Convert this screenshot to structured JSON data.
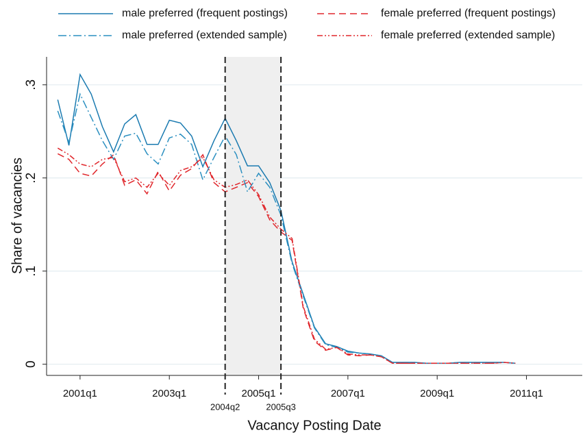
{
  "chart_data": {
    "type": "line",
    "xlabel": "Vacancy Posting Date",
    "ylabel": "Share of vacancies",
    "x": [
      "2000q3",
      "2000q4",
      "2001q1",
      "2001q2",
      "2001q3",
      "2001q4",
      "2002q1",
      "2002q2",
      "2002q3",
      "2002q4",
      "2003q1",
      "2003q2",
      "2003q3",
      "2003q4",
      "2004q1",
      "2004q2",
      "2004q3",
      "2004q4",
      "2005q1",
      "2005q2",
      "2005q3",
      "2005q4",
      "2006q1",
      "2006q2",
      "2006q3",
      "2006q4",
      "2007q1",
      "2007q2",
      "2007q3",
      "2007q4",
      "2008q1",
      "2008q2",
      "2008q3",
      "2008q4",
      "2009q1",
      "2009q2",
      "2009q3",
      "2009q4",
      "2010q1",
      "2010q2",
      "2010q3",
      "2010q4"
    ],
    "series": [
      {
        "name": "male preferred (frequent postings)",
        "color": "#1a7ab0",
        "line_style": "solid",
        "values": [
          0.284,
          0.235,
          0.311,
          0.29,
          0.255,
          0.228,
          0.258,
          0.268,
          0.236,
          0.236,
          0.262,
          0.259,
          0.245,
          0.212,
          0.24,
          0.264,
          0.24,
          0.213,
          0.213,
          0.195,
          0.165,
          0.11,
          0.075,
          0.04,
          0.022,
          0.019,
          0.014,
          0.012,
          0.011,
          0.009,
          0.002,
          0.002,
          0.002,
          0.001,
          0.001,
          0.001,
          0.002,
          0.002,
          0.002,
          0.002,
          0.002,
          0.001
        ]
      },
      {
        "name": "female preferred (frequent postings)",
        "color": "#e0262b",
        "line_style": "dashed",
        "values": [
          0.226,
          0.22,
          0.205,
          0.202,
          0.215,
          0.225,
          0.192,
          0.198,
          0.183,
          0.207,
          0.186,
          0.203,
          0.21,
          0.225,
          0.195,
          0.185,
          0.19,
          0.195,
          0.18,
          0.155,
          0.142,
          0.133,
          0.06,
          0.025,
          0.015,
          0.018,
          0.01,
          0.009,
          0.01,
          0.008,
          0.001,
          0.001,
          0.001,
          0.001,
          0.001,
          0.001,
          0.001,
          0.001,
          0.001,
          0.001,
          0.002,
          0.001
        ]
      },
      {
        "name": "male preferred (extended sample)",
        "color": "#2a8fc0",
        "line_style": "dashdot",
        "values": [
          0.272,
          0.238,
          0.29,
          0.265,
          0.24,
          0.22,
          0.245,
          0.248,
          0.226,
          0.215,
          0.243,
          0.247,
          0.236,
          0.198,
          0.222,
          0.245,
          0.225,
          0.185,
          0.205,
          0.19,
          0.16,
          0.108,
          0.073,
          0.039,
          0.021,
          0.018,
          0.013,
          0.012,
          0.011,
          0.009,
          0.002,
          0.002,
          0.002,
          0.001,
          0.001,
          0.001,
          0.002,
          0.002,
          0.002,
          0.002,
          0.002,
          0.001
        ]
      },
      {
        "name": "female preferred (extended sample)",
        "color": "#e0262b",
        "line_style": "dashdotdot",
        "values": [
          0.232,
          0.225,
          0.215,
          0.212,
          0.22,
          0.222,
          0.196,
          0.2,
          0.19,
          0.205,
          0.192,
          0.208,
          0.212,
          0.222,
          0.198,
          0.19,
          0.193,
          0.198,
          0.182,
          0.158,
          0.145,
          0.135,
          0.062,
          0.027,
          0.016,
          0.018,
          0.011,
          0.01,
          0.01,
          0.008,
          0.001,
          0.001,
          0.001,
          0.001,
          0.001,
          0.001,
          0.001,
          0.001,
          0.001,
          0.001,
          0.002,
          0.001
        ]
      }
    ],
    "xlim": [
      "2000q2",
      "2012q2"
    ],
    "xticks": [
      "2001q1",
      "2003q1",
      "2005q1",
      "2007q1",
      "2009q1",
      "2011q1"
    ],
    "ylim": [
      -0.012,
      0.33
    ],
    "yticks": [
      0,
      {
        "value": 0.1,
        "label": ".1"
      },
      {
        "value": 0.2,
        "label": ".2"
      },
      {
        "value": 0.3,
        "label": ".3"
      }
    ],
    "grid": true,
    "shaded_period": [
      "2004q2",
      "2005q3"
    ]
  }
}
